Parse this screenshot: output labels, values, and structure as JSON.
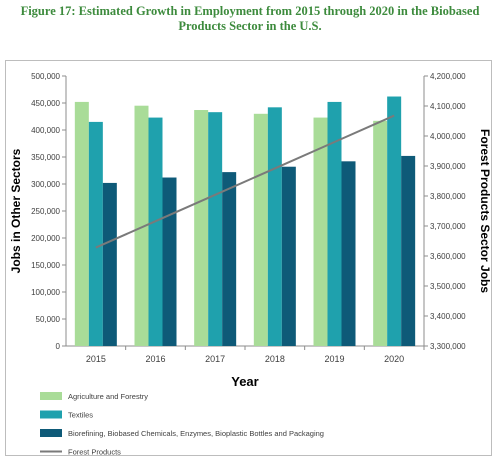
{
  "figure_title_line1": "Figure 17:  Estimated Growth in Employment from 2015 through 2020 in the Biobased",
  "figure_title_line2": "Products Sector in the U.S.",
  "colors": {
    "agriculture": "#a9dc98",
    "textiles": "#1fa1ad",
    "biorefining": "#0e5a78",
    "forest": "#7a7a7a",
    "title": "#3d8b3d"
  },
  "chart_data": {
    "type": "bar",
    "categories": [
      "2015",
      "2016",
      "2017",
      "2018",
      "2019",
      "2020"
    ],
    "series": [
      {
        "name": "Agriculture and Forestry",
        "axis": "left",
        "values": [
          452000,
          445000,
          437000,
          430000,
          423000,
          417000
        ]
      },
      {
        "name": "Textiles",
        "axis": "left",
        "values": [
          415000,
          423000,
          433000,
          442000,
          452000,
          462000
        ]
      },
      {
        "name": "Biorefining, Biobased Chemicals, Enzymes, Bioplastic Bottles and Packaging",
        "axis": "left",
        "values": [
          302000,
          312000,
          322000,
          332000,
          342000,
          352000
        ]
      },
      {
        "name": "Forest Products",
        "axis": "right",
        "type": "line",
        "values": [
          3628000,
          3716000,
          3804000,
          3892000,
          3980000,
          4068000
        ]
      }
    ],
    "xlabel": "Year",
    "ylabel": "Jobs in Other Sectors",
    "y2label": "Forest Products Sector Jobs",
    "ylim": [
      0,
      500000
    ],
    "y2lim": [
      3300000,
      4200000
    ],
    "yticks": [
      "0",
      "50,000",
      "100,000",
      "150,000",
      "200,000",
      "250,000",
      "300,000",
      "350,000",
      "400,000",
      "450,000",
      "500,000"
    ],
    "y2ticks": [
      "3,300,000",
      "3,400,000",
      "3,500,000",
      "3,600,000",
      "3,700,000",
      "3,800,000",
      "3,900,000",
      "4,000,000",
      "4,100,000",
      "4,200,000"
    ],
    "grid": false,
    "legend_position": "bottom"
  }
}
